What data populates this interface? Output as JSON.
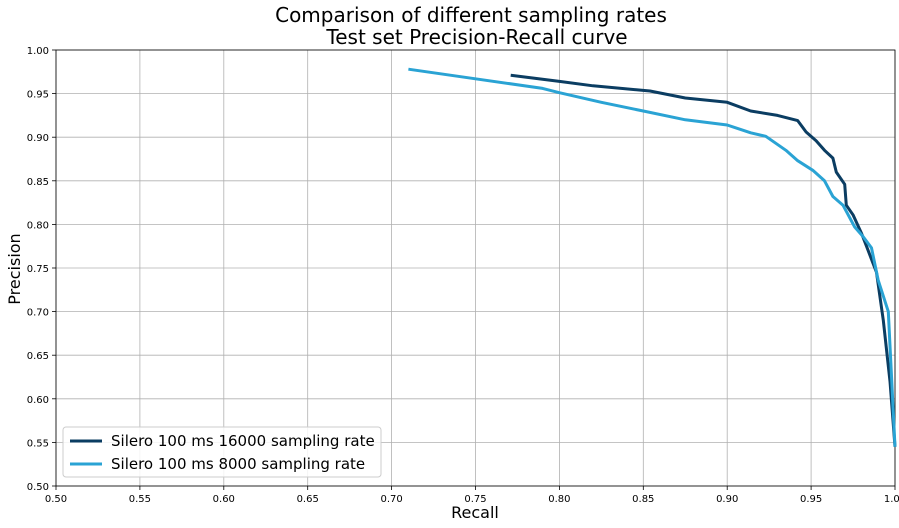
{
  "chart_data": {
    "type": "line",
    "title_lines": [
      "Comparison of different sampling rates",
      "Test set Precision-Recall curve"
    ],
    "xlabel": "Recall",
    "ylabel": "Precision",
    "xlim": [
      0.5,
      1.0
    ],
    "ylim": [
      0.5,
      1.0
    ],
    "grid": true,
    "legend_position": "lower-left",
    "xticks": [
      "0.50",
      "0.55",
      "0.60",
      "0.65",
      "0.70",
      "0.75",
      "0.80",
      "0.85",
      "0.90",
      "0.95",
      "1.00"
    ],
    "yticks": [
      "0.50",
      "0.55",
      "0.60",
      "0.65",
      "0.70",
      "0.75",
      "0.80",
      "0.85",
      "0.90",
      "0.95",
      "1.00"
    ],
    "series": [
      {
        "name": "Silero 100 ms 16000 sampling rate",
        "color": "#0b3d62",
        "x": [
          0.771,
          0.8,
          0.82,
          0.854,
          0.875,
          0.9,
          0.914,
          0.93,
          0.942,
          0.947,
          0.953,
          0.958,
          0.963,
          0.965,
          0.97,
          0.971,
          0.975,
          0.98,
          0.983,
          0.986,
          0.989,
          0.993,
          0.997,
          1.0
        ],
        "y": [
          0.971,
          0.964,
          0.959,
          0.953,
          0.945,
          0.94,
          0.93,
          0.925,
          0.919,
          0.906,
          0.896,
          0.885,
          0.876,
          0.86,
          0.846,
          0.822,
          0.811,
          0.79,
          0.775,
          0.76,
          0.745,
          0.69,
          0.62,
          0.545
        ]
      },
      {
        "name": "Silero 100 ms 8000 sampling rate",
        "color": "#2aa3d4",
        "x": [
          0.71,
          0.75,
          0.79,
          0.8,
          0.825,
          0.85,
          0.875,
          0.9,
          0.914,
          0.923,
          0.935,
          0.942,
          0.951,
          0.958,
          0.963,
          0.969,
          0.976,
          0.981,
          0.986,
          0.99,
          0.996,
          1.0
        ],
        "y": [
          0.978,
          0.967,
          0.956,
          0.951,
          0.94,
          0.93,
          0.92,
          0.914,
          0.905,
          0.901,
          0.885,
          0.873,
          0.862,
          0.85,
          0.832,
          0.822,
          0.797,
          0.786,
          0.773,
          0.736,
          0.7,
          0.545
        ]
      }
    ]
  }
}
